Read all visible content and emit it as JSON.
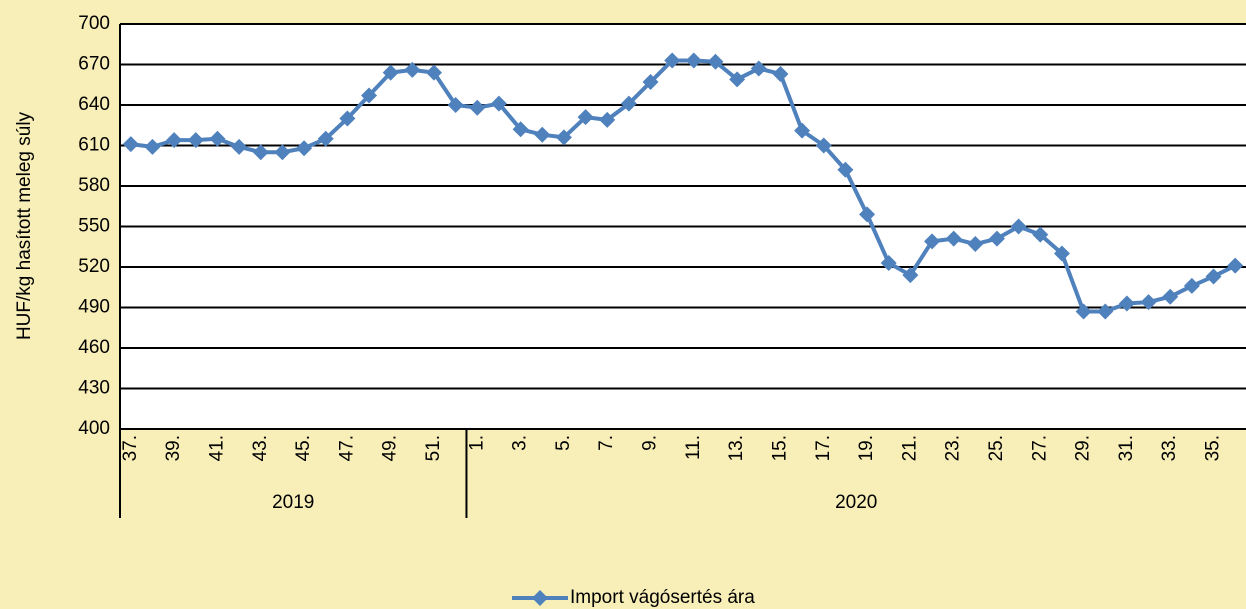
{
  "chart_data": {
    "type": "line",
    "y_label": "HUF/kg hasított meleg súly",
    "categories": [
      "37.",
      null,
      "39.",
      null,
      "41.",
      null,
      "43.",
      null,
      "45.",
      null,
      "47.",
      null,
      "49.",
      null,
      "51.",
      null,
      "1.",
      null,
      "3.",
      null,
      "5.",
      null,
      "7.",
      null,
      "9.",
      null,
      "11.",
      null,
      "13.",
      null,
      "15.",
      null,
      "17.",
      null,
      "19.",
      null,
      "21.",
      null,
      "23.",
      null,
      "25.",
      null,
      "27.",
      null,
      "29.",
      null,
      "31.",
      null,
      "33.",
      null,
      "35.",
      null
    ],
    "groups": [
      {
        "label": "2019",
        "size": 16
      },
      {
        "label": "2020",
        "size": 36
      }
    ],
    "series": [
      {
        "name": "Import vágósertés ára",
        "color": "#4f81bd",
        "values": [
          611,
          609,
          614,
          614,
          615,
          609,
          605,
          605,
          608,
          615,
          630,
          647,
          664,
          666,
          664,
          640,
          638,
          641,
          622,
          618,
          616,
          631,
          629,
          641,
          657,
          673,
          673,
          672,
          659,
          667,
          663,
          621,
          610,
          592,
          559,
          523,
          514,
          539,
          541,
          537,
          541,
          550,
          544,
          530,
          487,
          487,
          493,
          494,
          498,
          506,
          513,
          521
        ]
      }
    ],
    "ylim": [
      400,
      700
    ],
    "yticks": [
      400,
      430,
      460,
      490,
      520,
      550,
      580,
      610,
      640,
      670,
      700
    ],
    "grid": true
  }
}
